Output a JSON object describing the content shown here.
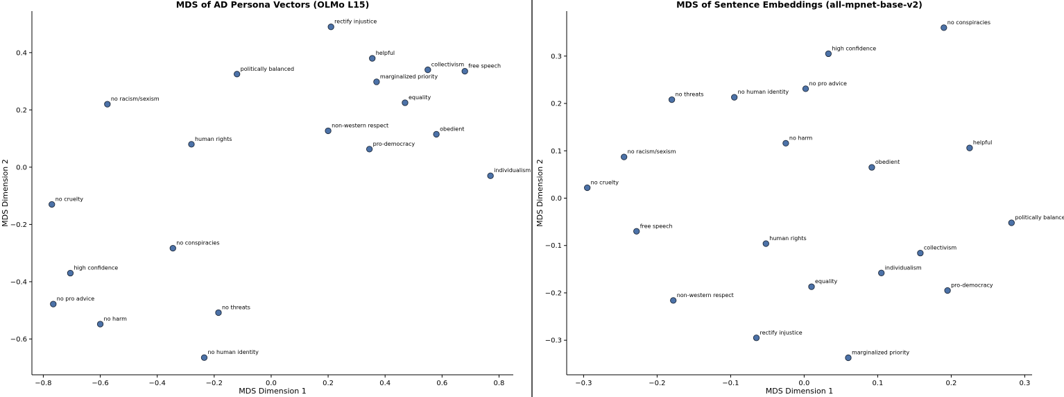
{
  "chart_data": [
    {
      "type": "scatter",
      "title": "MDS of AD Persona Vectors (OLMo L15)",
      "xlabel": "MDS Dimension 1",
      "ylabel": "MDS Dimension 2",
      "xlim": [
        -0.84,
        0.85
      ],
      "ylim": [
        -0.725,
        0.545
      ],
      "xticks": [
        -0.8,
        -0.6,
        -0.4,
        -0.2,
        0.0,
        0.2,
        0.4,
        0.6,
        0.8
      ],
      "yticks": [
        -0.6,
        -0.4,
        -0.2,
        0.0,
        0.2,
        0.4
      ],
      "xtick_labels": [
        "−0.8",
        "−0.6",
        "−0.4",
        "−0.2",
        "0.0",
        "0.2",
        "0.4",
        "0.6",
        "0.8"
      ],
      "ytick_labels": [
        "−0.6",
        "−0.4",
        "−0.2",
        "0.0",
        "0.2",
        "0.4"
      ],
      "grid": false,
      "marker_color": "#4c72a8",
      "points": [
        {
          "label": "rectify injustice",
          "x": 0.21,
          "y": 0.49
        },
        {
          "label": "helpful",
          "x": 0.355,
          "y": 0.38
        },
        {
          "label": "collectivism",
          "x": 0.55,
          "y": 0.34
        },
        {
          "label": "free speech",
          "x": 0.68,
          "y": 0.335
        },
        {
          "label": "politically balanced",
          "x": -0.12,
          "y": 0.325
        },
        {
          "label": "marginalized priority",
          "x": 0.37,
          "y": 0.298
        },
        {
          "label": "equality",
          "x": 0.47,
          "y": 0.225
        },
        {
          "label": "no racism/sexism",
          "x": -0.575,
          "y": 0.22
        },
        {
          "label": "non-western respect",
          "x": 0.2,
          "y": 0.127
        },
        {
          "label": "obedient",
          "x": 0.58,
          "y": 0.115
        },
        {
          "label": "human rights",
          "x": -0.28,
          "y": 0.08
        },
        {
          "label": "pro-democracy",
          "x": 0.345,
          "y": 0.063
        },
        {
          "label": "individualism",
          "x": 0.77,
          "y": -0.03
        },
        {
          "label": "no cruelty",
          "x": -0.77,
          "y": -0.13
        },
        {
          "label": "no conspiracies",
          "x": -0.345,
          "y": -0.283
        },
        {
          "label": "high confidence",
          "x": -0.705,
          "y": -0.37
        },
        {
          "label": "no pro advice",
          "x": -0.765,
          "y": -0.478
        },
        {
          "label": "no threats",
          "x": -0.185,
          "y": -0.508
        },
        {
          "label": "no harm",
          "x": -0.6,
          "y": -0.548
        },
        {
          "label": "no human identity",
          "x": -0.235,
          "y": -0.665
        }
      ]
    },
    {
      "type": "scatter",
      "title": "MDS of Sentence Embeddings (all-mpnet-base-v2)",
      "xlabel": "MDS Dimension 1",
      "ylabel": "MDS Dimension 2",
      "xlim": [
        -0.323,
        0.31
      ],
      "ylim": [
        -0.373,
        0.395
      ],
      "xticks": [
        -0.3,
        -0.2,
        -0.1,
        0.0,
        0.1,
        0.2,
        0.3
      ],
      "yticks": [
        -0.3,
        -0.2,
        -0.1,
        0.0,
        0.1,
        0.2,
        0.3
      ],
      "xtick_labels": [
        "−0.3",
        "−0.2",
        "−0.1",
        "0.0",
        "0.1",
        "0.2",
        "0.3"
      ],
      "ytick_labels": [
        "−0.3",
        "−0.2",
        "−0.1",
        "0.0",
        "0.1",
        "0.2",
        "0.3"
      ],
      "grid": false,
      "marker_color": "#4c72a8",
      "points": [
        {
          "label": "no conspiracies",
          "x": 0.19,
          "y": 0.36
        },
        {
          "label": "high confidence",
          "x": 0.033,
          "y": 0.305
        },
        {
          "label": "no pro advice",
          "x": 0.002,
          "y": 0.231
        },
        {
          "label": "no human identity",
          "x": -0.095,
          "y": 0.213
        },
        {
          "label": "no threats",
          "x": -0.18,
          "y": 0.208
        },
        {
          "label": "no harm",
          "x": -0.025,
          "y": 0.116
        },
        {
          "label": "helpful",
          "x": 0.225,
          "y": 0.106
        },
        {
          "label": "no racism/sexism",
          "x": -0.245,
          "y": 0.087
        },
        {
          "label": "obedient",
          "x": 0.092,
          "y": 0.065
        },
        {
          "label": "no cruelty",
          "x": -0.295,
          "y": 0.022
        },
        {
          "label": "politically balanced",
          "x": 0.282,
          "y": -0.052
        },
        {
          "label": "free speech",
          "x": -0.228,
          "y": -0.07
        },
        {
          "label": "human rights",
          "x": -0.052,
          "y": -0.096
        },
        {
          "label": "collectivism",
          "x": 0.158,
          "y": -0.116
        },
        {
          "label": "individualism",
          "x": 0.105,
          "y": -0.158
        },
        {
          "label": "equality",
          "x": 0.01,
          "y": -0.187
        },
        {
          "label": "pro-democracy",
          "x": 0.195,
          "y": -0.195
        },
        {
          "label": "non-western respect",
          "x": -0.178,
          "y": -0.216
        },
        {
          "label": "rectify injustice",
          "x": -0.065,
          "y": -0.295
        },
        {
          "label": "marginalized priority",
          "x": 0.06,
          "y": -0.337
        }
      ]
    }
  ]
}
